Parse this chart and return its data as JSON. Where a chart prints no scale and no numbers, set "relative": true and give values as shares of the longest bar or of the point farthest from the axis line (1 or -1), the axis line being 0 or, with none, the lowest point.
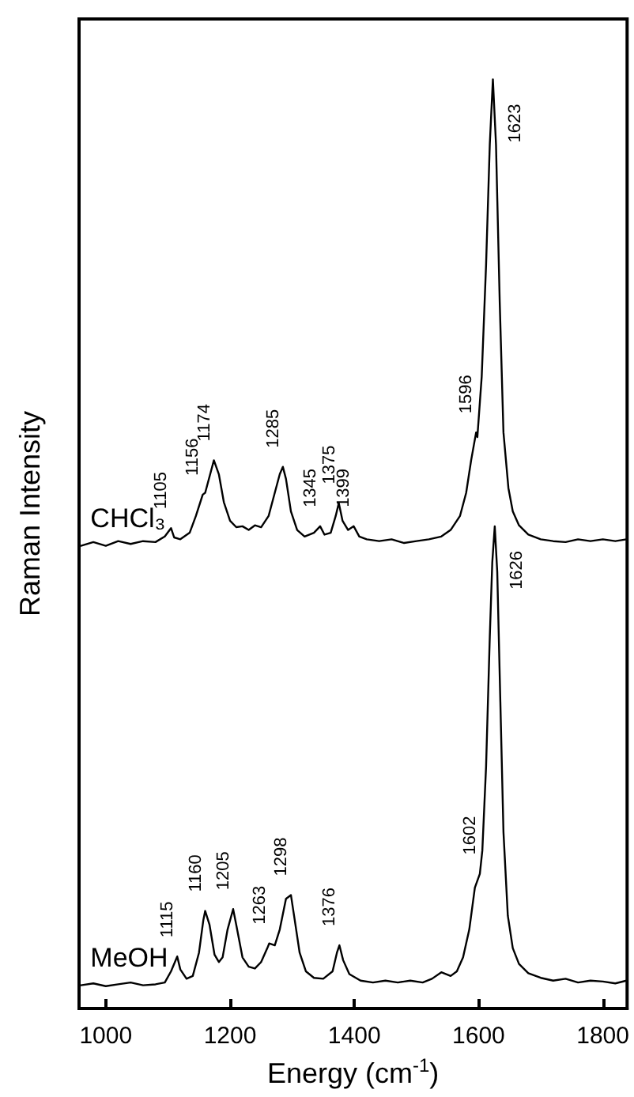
{
  "chart_data": {
    "type": "line",
    "relative": true,
    "xlabel": "Energy (cm$^{-1}$)",
    "ylabel": "Raman Intensity",
    "xlim": [
      957,
      1839
    ],
    "xticks": [
      1000,
      1200,
      1400,
      1600,
      1800
    ],
    "grid": false,
    "legend": false,
    "marker": "none",
    "line_style": "solid",
    "series": [
      {
        "name": "CHCl₃",
        "color": "#000000",
        "x": [
          960,
          980,
          1000,
          1020,
          1040,
          1060,
          1080,
          1095,
          1105,
          1110,
          1120,
          1135,
          1145,
          1156,
          1160,
          1168,
          1174,
          1182,
          1190,
          1200,
          1210,
          1220,
          1230,
          1240,
          1250,
          1262,
          1272,
          1280,
          1285,
          1290,
          1298,
          1308,
          1320,
          1335,
          1345,
          1352,
          1362,
          1370,
          1375,
          1381,
          1390,
          1399,
          1408,
          1420,
          1440,
          1460,
          1480,
          1500,
          1520,
          1540,
          1555,
          1570,
          1580,
          1588,
          1596,
          1598,
          1605,
          1612,
          1618,
          1623,
          1628,
          1634,
          1640,
          1648,
          1655,
          1665,
          1680,
          1700,
          1720,
          1740,
          1760,
          1780,
          1800,
          1820,
          1838
        ],
        "values": [
          0.498,
          0.502,
          0.498,
          0.503,
          0.5,
          0.503,
          0.502,
          0.508,
          0.517,
          0.507,
          0.505,
          0.512,
          0.53,
          0.553,
          0.555,
          0.575,
          0.59,
          0.575,
          0.545,
          0.525,
          0.518,
          0.519,
          0.515,
          0.52,
          0.518,
          0.53,
          0.555,
          0.575,
          0.583,
          0.57,
          0.535,
          0.515,
          0.508,
          0.512,
          0.519,
          0.51,
          0.512,
          0.53,
          0.544,
          0.525,
          0.515,
          0.519,
          0.508,
          0.505,
          0.503,
          0.505,
          0.501,
          0.503,
          0.505,
          0.508,
          0.515,
          0.53,
          0.555,
          0.59,
          0.62,
          0.615,
          0.68,
          0.8,
          0.93,
          1.0,
          0.93,
          0.76,
          0.62,
          0.56,
          0.535,
          0.52,
          0.51,
          0.505,
          0.503,
          0.502,
          0.505,
          0.503,
          0.505,
          0.503,
          0.505
        ]
      },
      {
        "name": "MeOH",
        "color": "#000000",
        "x": [
          960,
          980,
          1000,
          1020,
          1040,
          1060,
          1080,
          1095,
          1105,
          1115,
          1120,
          1130,
          1140,
          1150,
          1157,
          1160,
          1167,
          1175,
          1182,
          1188,
          1196,
          1205,
          1210,
          1220,
          1230,
          1240,
          1250,
          1260,
          1263,
          1272,
          1280,
          1290,
          1298,
          1303,
          1312,
          1322,
          1335,
          1350,
          1365,
          1372,
          1376,
          1382,
          1392,
          1410,
          1430,
          1450,
          1470,
          1490,
          1510,
          1525,
          1540,
          1555,
          1565,
          1575,
          1585,
          1594,
          1602,
          1606,
          1612,
          1618,
          1622,
          1626,
          1630,
          1635,
          1640,
          1647,
          1655,
          1665,
          1680,
          1700,
          1720,
          1740,
          1760,
          1780,
          1800,
          1820,
          1838
        ],
        "values": [
          0.025,
          0.027,
          0.024,
          0.026,
          0.028,
          0.025,
          0.026,
          0.028,
          0.04,
          0.056,
          0.042,
          0.032,
          0.035,
          0.06,
          0.095,
          0.105,
          0.09,
          0.058,
          0.05,
          0.055,
          0.085,
          0.107,
          0.09,
          0.055,
          0.045,
          0.043,
          0.05,
          0.065,
          0.07,
          0.068,
          0.085,
          0.118,
          0.122,
          0.1,
          0.06,
          0.04,
          0.033,
          0.032,
          0.04,
          0.06,
          0.068,
          0.052,
          0.037,
          0.03,
          0.028,
          0.03,
          0.028,
          0.03,
          0.028,
          0.032,
          0.039,
          0.035,
          0.04,
          0.055,
          0.085,
          0.13,
          0.145,
          0.17,
          0.26,
          0.4,
          0.48,
          0.519,
          0.47,
          0.33,
          0.19,
          0.1,
          0.065,
          0.048,
          0.038,
          0.033,
          0.03,
          0.032,
          0.028,
          0.03,
          0.029,
          0.027,
          0.03
        ]
      }
    ],
    "annotations": [
      {
        "text": "1105",
        "x": 1105,
        "y": 0.517
      },
      {
        "text": "1156",
        "x": 1156,
        "y": 0.553
      },
      {
        "text": "1174",
        "x": 1174,
        "y": 0.59
      },
      {
        "text": "1285",
        "x": 1285,
        "y": 0.583
      },
      {
        "text": "1345",
        "x": 1345,
        "y": 0.519
      },
      {
        "text": "1375",
        "x": 1375,
        "y": 0.544
      },
      {
        "text": "1399",
        "x": 1399,
        "y": 0.519
      },
      {
        "text": "1596",
        "x": 1596,
        "y": 0.62
      },
      {
        "text": "1623",
        "x": 1623,
        "y": 1.0
      },
      {
        "text": "1115",
        "x": 1115,
        "y": 0.056
      },
      {
        "text": "1160",
        "x": 1160,
        "y": 0.105
      },
      {
        "text": "1205",
        "x": 1205,
        "y": 0.107
      },
      {
        "text": "1263",
        "x": 1263,
        "y": 0.07
      },
      {
        "text": "1298",
        "x": 1298,
        "y": 0.122
      },
      {
        "text": "1376",
        "x": 1376,
        "y": 0.068
      },
      {
        "text": "1602",
        "x": 1602,
        "y": 0.145
      },
      {
        "text": "1626",
        "x": 1626,
        "y": 0.519
      }
    ]
  }
}
